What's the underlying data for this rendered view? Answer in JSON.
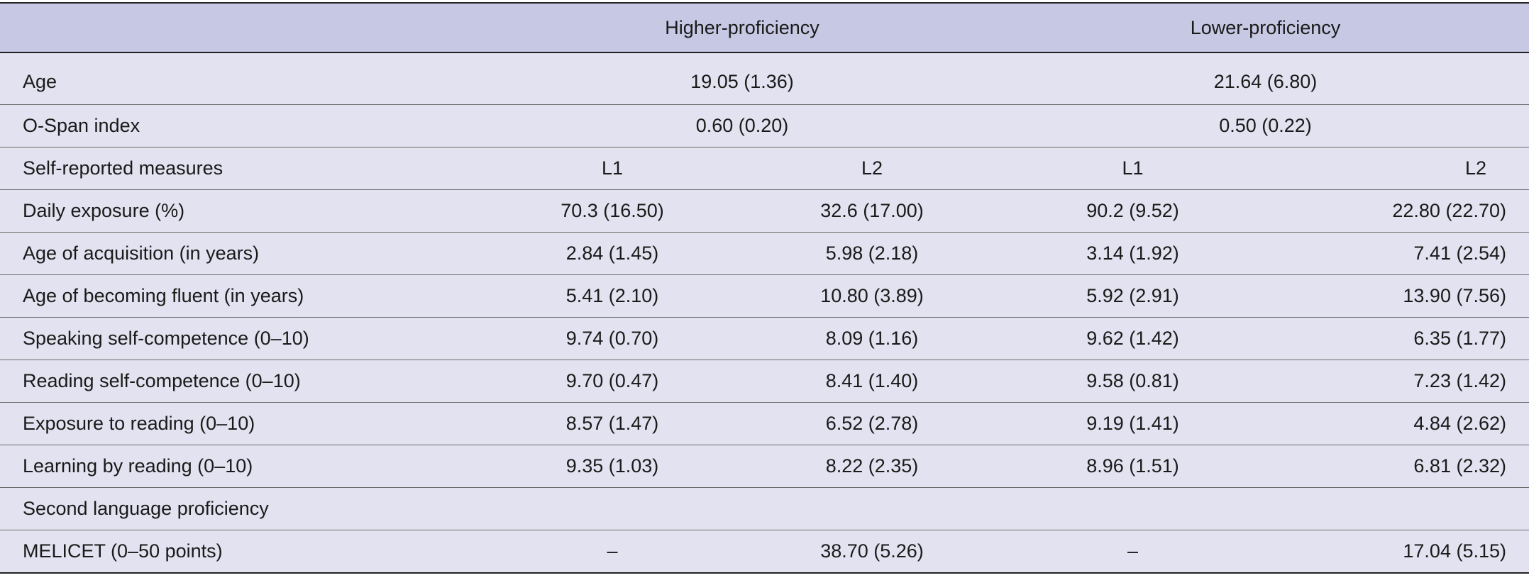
{
  "header": {
    "col_label": "",
    "group_high": "Higher-proficiency",
    "group_low": "Lower-proficiency"
  },
  "rows_spanned": [
    {
      "label": "Age",
      "high": "19.05 (1.36)",
      "low": "21.64 (6.80)"
    },
    {
      "label": "O-Span index",
      "high": "0.60 (0.20)",
      "low": "0.50 (0.22)"
    }
  ],
  "subheader": {
    "label": "Self-reported measures",
    "high_l1": "L1",
    "high_l2": "L2",
    "low_l1": "L1",
    "low_l2": "L2"
  },
  "rows": [
    {
      "label": "Daily exposure (%)",
      "high_l1": "70.3 (16.50)",
      "high_l2": "32.6 (17.00)",
      "low_l1": "90.2 (9.52)",
      "low_l2": "22.80 (22.70)"
    },
    {
      "label": "Age of acquisition (in years)",
      "high_l1": "2.84 (1.45)",
      "high_l2": "5.98 (2.18)",
      "low_l1": "3.14 (1.92)",
      "low_l2": "7.41 (2.54)"
    },
    {
      "label": "Age of becoming fluent (in years)",
      "high_l1": "5.41 (2.10)",
      "high_l2": "10.80 (3.89)",
      "low_l1": "5.92 (2.91)",
      "low_l2": "13.90 (7.56)"
    },
    {
      "label": "Speaking self-competence (0–10)",
      "high_l1": "9.74 (0.70)",
      "high_l2": "8.09 (1.16)",
      "low_l1": "9.62 (1.42)",
      "low_l2": "6.35 (1.77)"
    },
    {
      "label": "Reading self-competence (0–10)",
      "high_l1": "9.70 (0.47)",
      "high_l2": "8.41 (1.40)",
      "low_l1": "9.58 (0.81)",
      "low_l2": "7.23 (1.42)"
    },
    {
      "label": "Exposure to reading (0–10)",
      "high_l1": "8.57 (1.47)",
      "high_l2": "6.52 (2.78)",
      "low_l1": "9.19 (1.41)",
      "low_l2": "4.84 (2.62)"
    },
    {
      "label": "Learning by reading (0–10)",
      "high_l1": "9.35 (1.03)",
      "high_l2": "8.22 (2.35)",
      "low_l1": "8.96 (1.51)",
      "low_l2": "6.81 (2.32)"
    }
  ],
  "section": {
    "label": "Second language proficiency"
  },
  "melicet": {
    "label": "MELICET (0–50 points)",
    "high_l1": "–",
    "high_l2": "38.70 (5.26)",
    "low_l1": "–",
    "low_l2": "17.04 (5.15)"
  }
}
